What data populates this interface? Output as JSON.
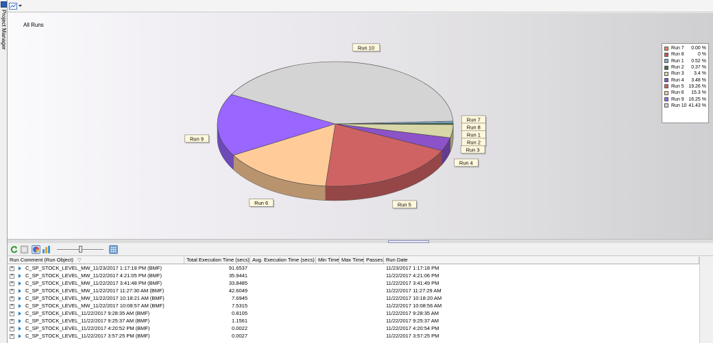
{
  "side_tab": {
    "label": "Project Manager"
  },
  "chart_data": {
    "type": "pie",
    "title": "All Runs",
    "slices": [
      {
        "name": "Run 7",
        "value": 0.0,
        "label": "0.00 %",
        "color": "#e8894e"
      },
      {
        "name": "Run 8",
        "value": 0,
        "label": "0 %",
        "color": "#cf5757"
      },
      {
        "name": "Run 1",
        "value": 0.52,
        "label": "0.52 %",
        "color": "#7fb0d8"
      },
      {
        "name": "Run 2",
        "value": 0.37,
        "label": "0.37 %",
        "color": "#3f6f3f"
      },
      {
        "name": "Run 3",
        "value": 3.4,
        "label": "3.4 %",
        "color": "#d7d7a8"
      },
      {
        "name": "Run 4",
        "value": 3.48,
        "label": "3.48 %",
        "color": "#8c52c8"
      },
      {
        "name": "Run 5",
        "value": 19.26,
        "label": "19.26 %",
        "color": "#cf6363"
      },
      {
        "name": "Run 6",
        "value": 15.3,
        "label": "15.3 %",
        "color": "#ffcc99"
      },
      {
        "name": "Run 9",
        "value": 16.25,
        "label": "16.25 %",
        "color": "#9966ff"
      },
      {
        "name": "Run 10",
        "value": 41.43,
        "label": "41.43 %",
        "color": "#d4d4d4"
      }
    ],
    "legend_position": "right"
  },
  "grid": {
    "columns": [
      {
        "label": "Run Comment (Run Object)"
      },
      {
        "label": "Total Execution Time (secs)"
      },
      {
        "label": "Avg. Execution Time (secs)"
      },
      {
        "label": "Min Time"
      },
      {
        "label": "Max Time"
      },
      {
        "label": "Passes"
      },
      {
        "label": "Run Date"
      }
    ],
    "rows": [
      {
        "comment": "C_SP_STOCK_LEVEL_MW_11/23/2017 1:17:18 PM (BMF)",
        "total": "91.6537",
        "avg": "",
        "min": "",
        "max": "",
        "passes": "",
        "date": "11/23/2017 1:17:18 PM"
      },
      {
        "comment": "C_SP_STOCK_LEVEL_MW_11/22/2017 4:21:05 PM (BMF)",
        "total": "35.9441",
        "avg": "",
        "min": "",
        "max": "",
        "passes": "",
        "date": "11/22/2017 4:21:06 PM"
      },
      {
        "comment": "C_SP_STOCK_LEVEL_MW_11/22/2017 3:41:48 PM (BMF)",
        "total": "33.8485",
        "avg": "",
        "min": "",
        "max": "",
        "passes": "",
        "date": "11/22/2017 3:41:49 PM"
      },
      {
        "comment": "C_SP_STOCK_LEVEL_MW_11/22/2017 11:27:30 AM (BMF)",
        "total": "42.6049",
        "avg": "",
        "min": "",
        "max": "",
        "passes": "",
        "date": "11/22/2017 11:27:29 AM"
      },
      {
        "comment": "C_SP_STOCK_LEVEL_MW_11/22/2017 10:18:21 AM (BMF)",
        "total": "7.6945",
        "avg": "",
        "min": "",
        "max": "",
        "passes": "",
        "date": "11/22/2017 10:18:20 AM"
      },
      {
        "comment": "C_SP_STOCK_LEVEL_MW_11/22/2017 10:08:57 AM (BMF)",
        "total": "7.5315",
        "avg": "",
        "min": "",
        "max": "",
        "passes": "",
        "date": "11/22/2017 10:08:56 AM"
      },
      {
        "comment": "C_SP_STOCK_LEVEL_11/22/2017 9:28:35 AM (BMF)",
        "total": "0.8105",
        "avg": "",
        "min": "",
        "max": "",
        "passes": "",
        "date": "11/22/2017 9:28:35 AM"
      },
      {
        "comment": "C_SP_STOCK_LEVEL_11/22/2017 9:25:37 AM (BMF)",
        "total": "1.1561",
        "avg": "",
        "min": "",
        "max": "",
        "passes": "",
        "date": "11/22/2017 9:25:37 AM"
      },
      {
        "comment": "C_SP_STOCK_LEVEL_11/22/2017 4:20:52 PM (BMF)",
        "total": "0.0022",
        "avg": "",
        "min": "",
        "max": "",
        "passes": "",
        "date": "11/22/2017 4:20:54 PM"
      },
      {
        "comment": "C_SP_STOCK_LEVEL_11/22/2017 3:57:25 PM (BMF)",
        "total": "0.0027",
        "avg": "",
        "min": "",
        "max": "",
        "passes": "",
        "date": "11/22/2017 3:57:25 PM"
      }
    ]
  }
}
